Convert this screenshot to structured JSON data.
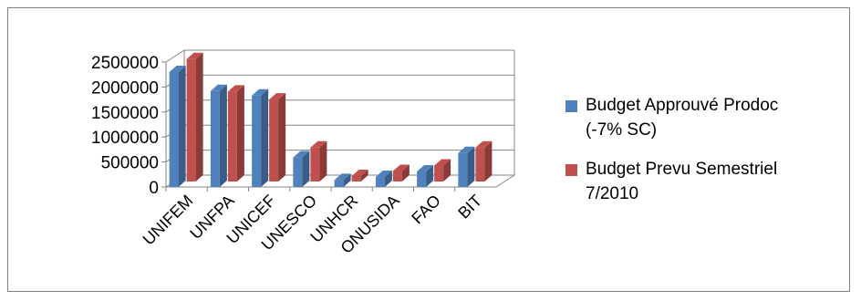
{
  "chart_data": {
    "type": "bar",
    "title": "",
    "xlabel": "",
    "ylabel": "",
    "categories": [
      "UNIFEM",
      "UNFPA",
      "UNICEF",
      "UNESCO",
      "UNHCR",
      "ONUSIDA",
      "FAO",
      "BIT"
    ],
    "series": [
      {
        "name": "Budget Approuvé Prodoc\n(-7% SC)",
        "color": "#4f81bd",
        "values": [
          2300000,
          1920000,
          1830000,
          590000,
          140000,
          200000,
          310000,
          680000
        ]
      },
      {
        "name": "Budget Prevu Semestriel\n7/2010",
        "color": "#c0504d",
        "values": [
          2450000,
          1800000,
          1640000,
          680000,
          110000,
          210000,
          320000,
          680000
        ]
      }
    ],
    "yticks": [
      "0",
      "500000",
      "1000000",
      "1500000",
      "2000000",
      "2500000"
    ],
    "ylim": [
      0,
      2500000
    ],
    "grid": true,
    "legend_position": "right"
  }
}
